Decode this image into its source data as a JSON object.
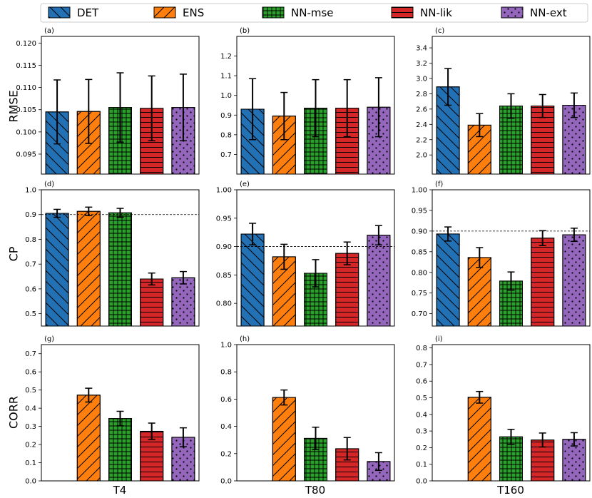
{
  "legend": {
    "items": [
      {
        "name": "DET",
        "color": "#2271b5",
        "hatch": "back"
      },
      {
        "name": "ENS",
        "color": "#ff7f0e",
        "hatch": "fwd"
      },
      {
        "name": "NN-mse",
        "color": "#2ca02c",
        "hatch": "grid"
      },
      {
        "name": "NN-lik",
        "color": "#d62728",
        "hatch": "horiz"
      },
      {
        "name": "NN-ext",
        "color": "#9467bd",
        "hatch": "dots"
      }
    ]
  },
  "row_labels": [
    "RMSE",
    "CP",
    "CORR"
  ],
  "col_labels": [
    "T4",
    "T80",
    "T160"
  ],
  "chart_data": [
    {
      "type": "bar",
      "panel": "(a)",
      "metric": "RMSE",
      "case": "T4",
      "ylim": [
        0.0905,
        0.1215
      ],
      "ticks": [
        0.095,
        0.1,
        0.105,
        0.11,
        0.115,
        0.12
      ],
      "tick_labels": [
        "0.095",
        "0.100",
        "0.105",
        "0.110",
        "0.115",
        "0.120"
      ],
      "values": [
        0.1045,
        0.1046,
        0.1055,
        0.1053,
        0.1055
      ],
      "errors": [
        0.0072,
        0.0072,
        0.0078,
        0.0073,
        0.0075
      ],
      "ref_line": null
    },
    {
      "type": "bar",
      "panel": "(b)",
      "metric": "RMSE",
      "case": "T80",
      "ylim": [
        0.6,
        1.3
      ],
      "ticks": [
        0.7,
        0.8,
        0.9,
        1.0,
        1.1,
        1.2
      ],
      "tick_labels": [
        "0.7",
        "0.8",
        "0.9",
        "1.0",
        "1.1",
        "1.2"
      ],
      "values": [
        0.93,
        0.895,
        0.935,
        0.935,
        0.94
      ],
      "errors": [
        0.155,
        0.12,
        0.145,
        0.145,
        0.15
      ],
      "ref_line": null
    },
    {
      "type": "bar",
      "panel": "(c)",
      "metric": "RMSE",
      "case": "T160",
      "ylim": [
        1.75,
        3.55
      ],
      "ticks": [
        2.0,
        2.2,
        2.4,
        2.6,
        2.8,
        3.0,
        3.2,
        3.4
      ],
      "tick_labels": [
        "2.0",
        "2.2",
        "2.4",
        "2.6",
        "2.8",
        "3.0",
        "3.2",
        "3.4"
      ],
      "values": [
        2.89,
        2.39,
        2.64,
        2.64,
        2.65
      ],
      "errors": [
        0.24,
        0.15,
        0.16,
        0.15,
        0.16
      ],
      "ref_line": null
    },
    {
      "type": "bar",
      "panel": "(d)",
      "metric": "CP",
      "case": "T4",
      "ylim": [
        0.45,
        1.0
      ],
      "ticks": [
        0.5,
        0.6,
        0.7,
        0.8,
        0.9,
        1.0
      ],
      "tick_labels": [
        "0.5",
        "0.6",
        "0.7",
        "0.8",
        "0.9",
        "1.0"
      ],
      "values": [
        0.905,
        0.913,
        0.907,
        0.64,
        0.645
      ],
      "errors": [
        0.016,
        0.017,
        0.018,
        0.024,
        0.025
      ],
      "ref_line": 0.9
    },
    {
      "type": "bar",
      "panel": "(e)",
      "metric": "CP",
      "case": "T80",
      "ylim": [
        0.76,
        1.0
      ],
      "ticks": [
        0.8,
        0.85,
        0.9,
        0.95,
        1.0
      ],
      "tick_labels": [
        "0.80",
        "0.85",
        "0.90",
        "0.95",
        "1.00"
      ],
      "values": [
        0.922,
        0.882,
        0.853,
        0.888,
        0.92
      ],
      "errors": [
        0.019,
        0.022,
        0.024,
        0.02,
        0.017
      ],
      "ref_line": 0.9
    },
    {
      "type": "bar",
      "panel": "(f)",
      "metric": "CP",
      "case": "T160",
      "ylim": [
        0.67,
        1.0
      ],
      "ticks": [
        0.7,
        0.75,
        0.8,
        0.85,
        0.9,
        0.95,
        1.0
      ],
      "tick_labels": [
        "0.70",
        "0.75",
        "0.80",
        "0.85",
        "0.90",
        "0.95",
        "1.00"
      ],
      "values": [
        0.893,
        0.836,
        0.779,
        0.883,
        0.891
      ],
      "errors": [
        0.017,
        0.024,
        0.022,
        0.018,
        0.016
      ],
      "ref_line": 0.9
    },
    {
      "type": "bar",
      "panel": "(g)",
      "metric": "CORR",
      "case": "T4",
      "ylim": [
        0.0,
        0.75
      ],
      "ticks": [
        0.0,
        0.1,
        0.2,
        0.3,
        0.4,
        0.5,
        0.6,
        0.7
      ],
      "tick_labels": [
        "0.0",
        "0.1",
        "0.2",
        "0.3",
        "0.4",
        "0.5",
        "0.6",
        "0.7"
      ],
      "values": [
        0.0,
        0.472,
        0.343,
        0.273,
        0.24
      ],
      "errors": [
        0.0,
        0.038,
        0.04,
        0.045,
        0.052
      ],
      "ref_line": null
    },
    {
      "type": "bar",
      "panel": "(h)",
      "metric": "CORR",
      "case": "T80",
      "ylim": [
        0.0,
        1.0
      ],
      "ticks": [
        0.0,
        0.2,
        0.4,
        0.6,
        0.8,
        1.0
      ],
      "tick_labels": [
        "0.0",
        "0.2",
        "0.4",
        "0.6",
        "0.8",
        "1.0"
      ],
      "values": [
        0.0,
        0.612,
        0.312,
        0.236,
        0.142
      ],
      "errors": [
        0.0,
        0.055,
        0.082,
        0.082,
        0.065
      ],
      "ref_line": null
    },
    {
      "type": "bar",
      "panel": "(i)",
      "metric": "CORR",
      "case": "T160",
      "ylim": [
        0.0,
        0.82
      ],
      "ticks": [
        0.0,
        0.1,
        0.2,
        0.3,
        0.4,
        0.5,
        0.6,
        0.7,
        0.8
      ],
      "tick_labels": [
        "0.0",
        "0.1",
        "0.2",
        "0.3",
        "0.4",
        "0.5",
        "0.6",
        "0.7",
        "0.8"
      ],
      "values": [
        0.0,
        0.503,
        0.265,
        0.246,
        0.25
      ],
      "errors": [
        0.0,
        0.035,
        0.045,
        0.042,
        0.04
      ],
      "ref_line": null
    }
  ]
}
